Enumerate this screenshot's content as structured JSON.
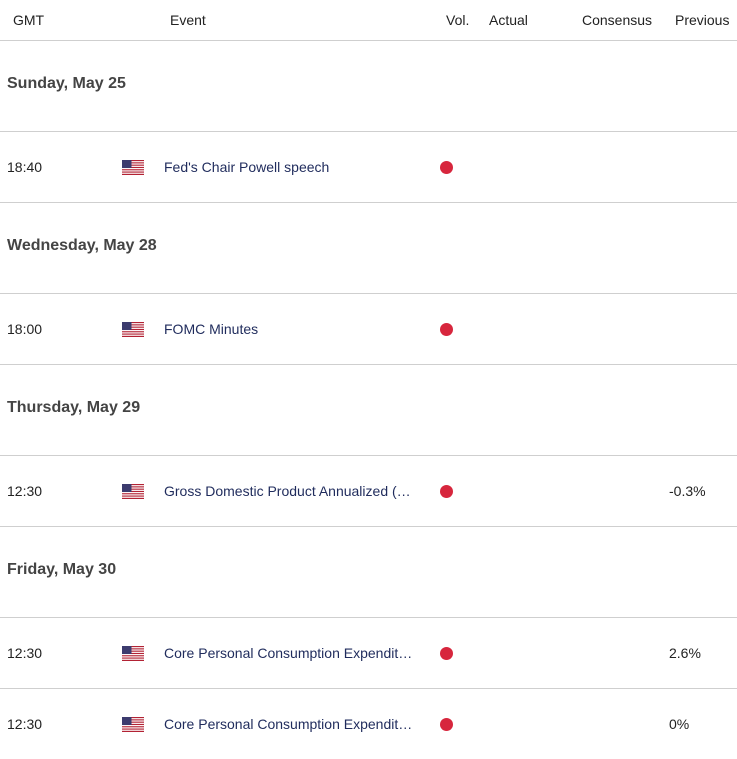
{
  "header": {
    "gmt": "GMT",
    "event": "Event",
    "vol": "Vol.",
    "actual": "Actual",
    "consensus": "Consensus",
    "previous": "Previous"
  },
  "days": [
    {
      "label": "Sunday, May 25",
      "events": [
        {
          "time": "18:40",
          "country_icon": "us-flag-icon",
          "event": "Fed's Chair Powell speech",
          "volatility": "high",
          "actual": "",
          "consensus": "",
          "previous": ""
        }
      ]
    },
    {
      "label": "Wednesday, May 28",
      "events": [
        {
          "time": "18:00",
          "country_icon": "us-flag-icon",
          "event": "FOMC Minutes",
          "volatility": "high",
          "actual": "",
          "consensus": "",
          "previous": ""
        }
      ]
    },
    {
      "label": "Thursday, May 29",
      "events": [
        {
          "time": "12:30",
          "country_icon": "us-flag-icon",
          "event": "Gross Domestic Product Annualized (…",
          "volatility": "high",
          "actual": "",
          "consensus": "",
          "previous": "-0.3%"
        }
      ]
    },
    {
      "label": "Friday, May 30",
      "events": [
        {
          "time": "12:30",
          "country_icon": "us-flag-icon",
          "event": "Core Personal Consumption Expendit…",
          "volatility": "high",
          "actual": "",
          "consensus": "",
          "previous": "2.6%"
        },
        {
          "time": "12:30",
          "country_icon": "us-flag-icon",
          "event": "Core Personal Consumption Expendit…",
          "volatility": "high",
          "actual": "",
          "consensus": "",
          "previous": "0%"
        }
      ]
    }
  ],
  "colors": {
    "volatility_high": "#d7263d",
    "event_text": "#1f2b5c",
    "divider": "#cfcfcf"
  }
}
